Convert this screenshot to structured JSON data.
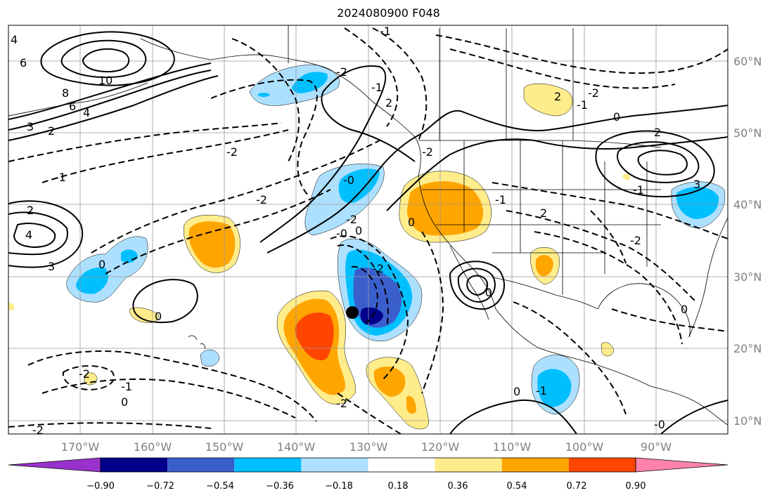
{
  "title": "2024080900 F048",
  "latitude_labels": [
    "60°N",
    "50°N",
    "40°N",
    "30°N",
    "20°N",
    "10°N"
  ],
  "longitude_labels": [
    "170°W",
    "160°W",
    "150°W",
    "140°W",
    "130°W",
    "120°W",
    "110°W",
    "100°W",
    "90°W"
  ],
  "colorbar": {
    "tick_labels": [
      "−0.90",
      "−0.72",
      "−0.54",
      "−0.36",
      "−0.18",
      "0.18",
      "0.36",
      "0.54",
      "0.72",
      "0.90"
    ],
    "colors": [
      "#9932CC",
      "#00008B",
      "#3A5FCD",
      "#00BFFF",
      "#ADE0FF",
      "#FFFFFF",
      "#FFEC8B",
      "#FFA500",
      "#FF4500",
      "#B22222",
      "#FF82AB"
    ]
  },
  "contour_labels": [
    "4",
    "6",
    "10",
    "8",
    "6",
    "4",
    "3",
    "2",
    "2",
    "-1",
    "2",
    "4",
    "3",
    "0",
    "0",
    "0",
    "-2",
    "-2",
    "-1",
    "-2",
    "-0",
    "-2",
    "-0",
    "-2",
    "-1",
    "0",
    "-2",
    "2",
    "-1",
    "-2",
    "0",
    "2",
    "-1",
    "0",
    "-2",
    "2",
    "3",
    "-1",
    "-1",
    "0",
    "2",
    "-2",
    "-1",
    "-0",
    "-0",
    "0",
    "-2",
    "-2"
  ],
  "marker": {
    "name": "storm-center",
    "lat": 25.3,
    "lon": -132.8
  }
}
